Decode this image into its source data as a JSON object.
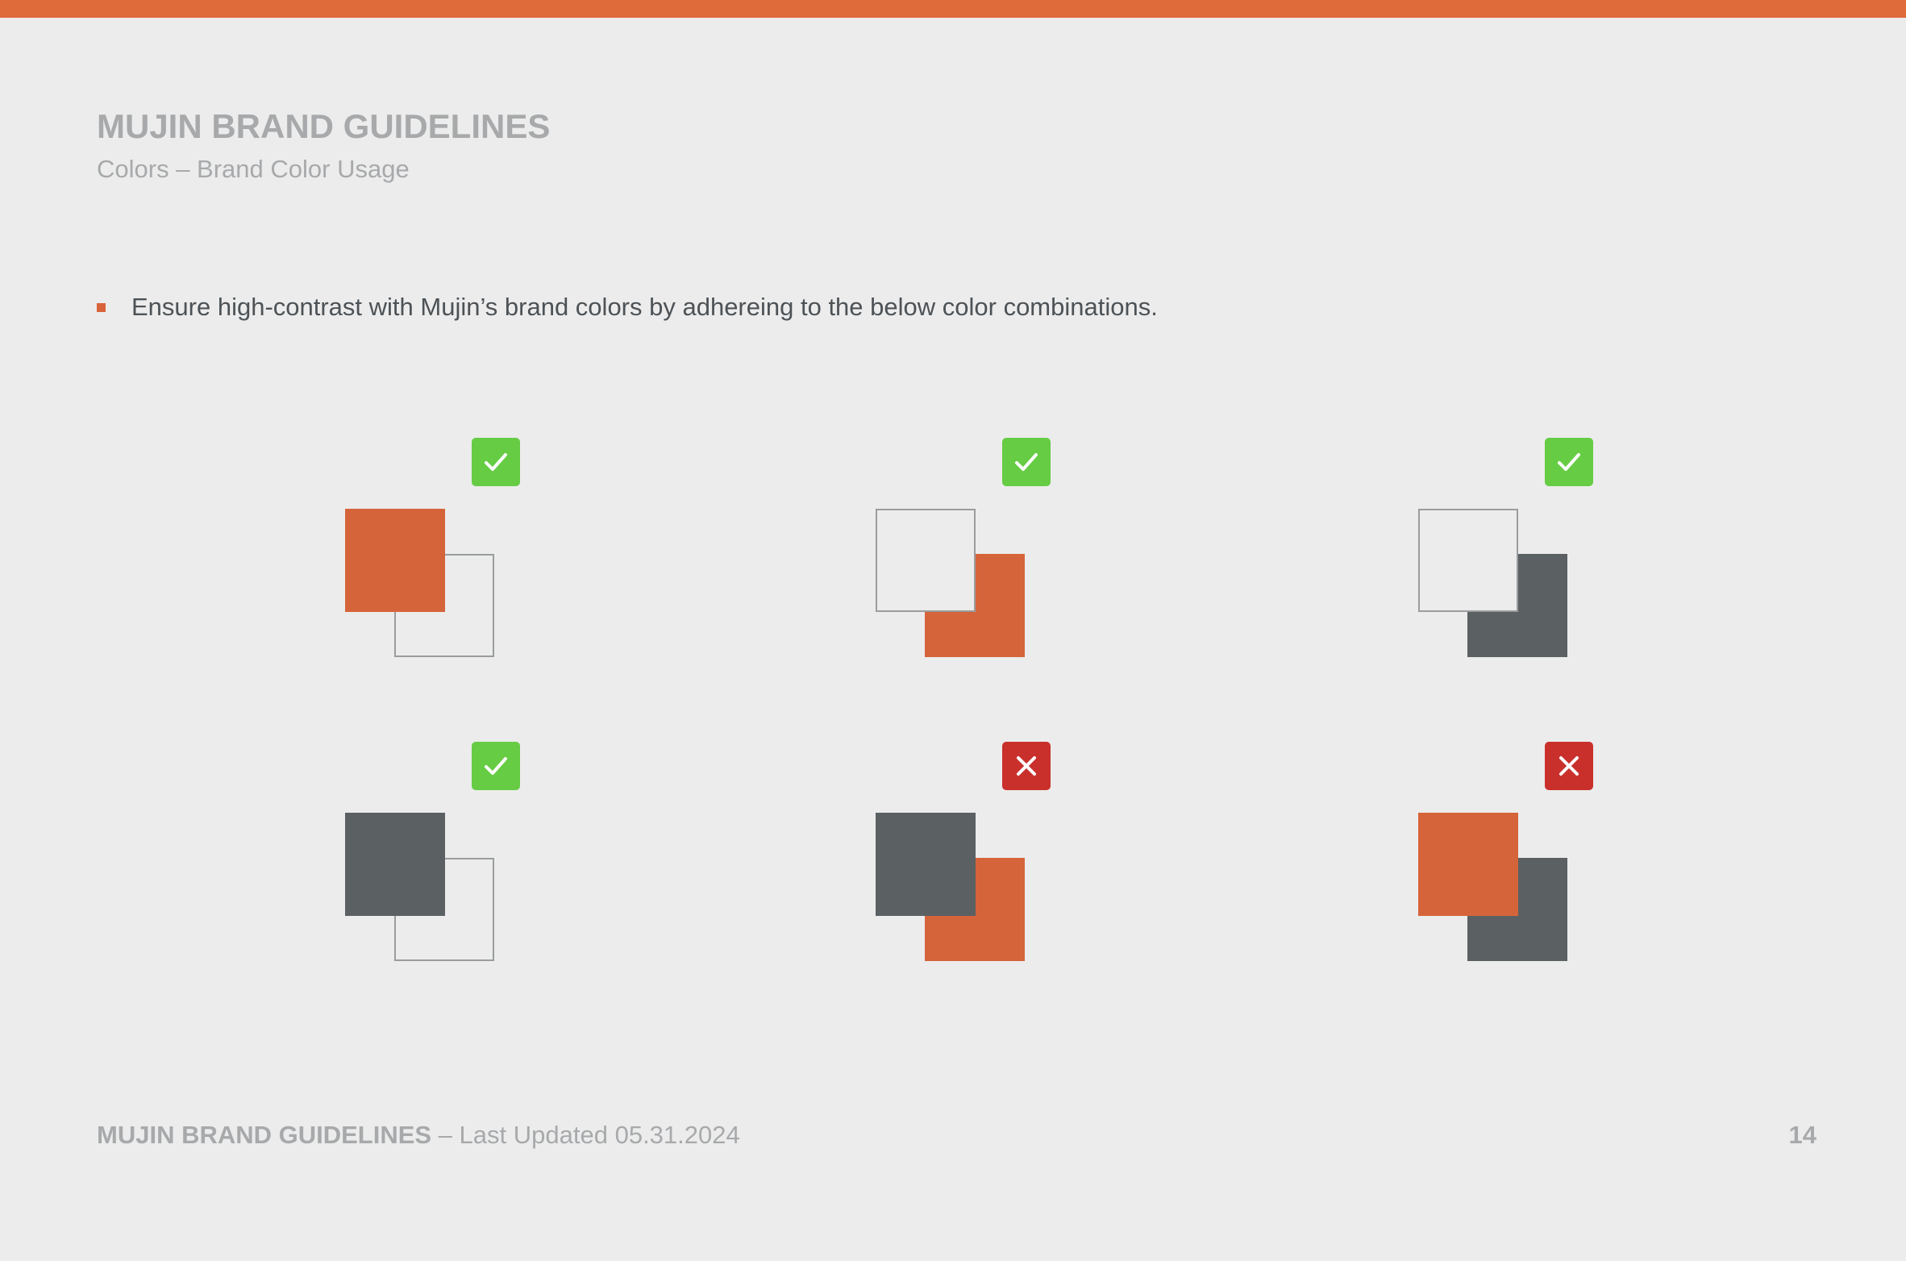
{
  "header": {
    "title": "MUJIN BRAND GUIDELINES",
    "subtitle": "Colors – Brand Color Usage"
  },
  "body": {
    "bullet": "Ensure high-contrast with Mujin’s brand colors by adhereing to the below color combinations."
  },
  "colors": {
    "accent_orange": "#df6a3a",
    "brand_orange": "#d6643a",
    "brand_gray": "#5b6063",
    "white_outline": "#ececec",
    "approved_green": "#66cc44",
    "rejected_red": "#c9302c"
  },
  "combinations": [
    {
      "front": "orange",
      "back": "white",
      "status": "approved"
    },
    {
      "front": "white",
      "back": "orange",
      "status": "approved"
    },
    {
      "front": "white",
      "back": "gray",
      "status": "approved"
    },
    {
      "front": "gray",
      "back": "white",
      "status": "approved"
    },
    {
      "front": "gray",
      "back": "orange",
      "status": "rejected"
    },
    {
      "front": "orange",
      "back": "gray",
      "status": "rejected"
    }
  ],
  "icons": {
    "approved": "checkmark-icon",
    "rejected": "x-mark-icon"
  },
  "footer": {
    "brand": "MUJIN BRAND GUIDELINES",
    "updated": " – Last Updated 05.31.2024",
    "page_number": "14"
  }
}
